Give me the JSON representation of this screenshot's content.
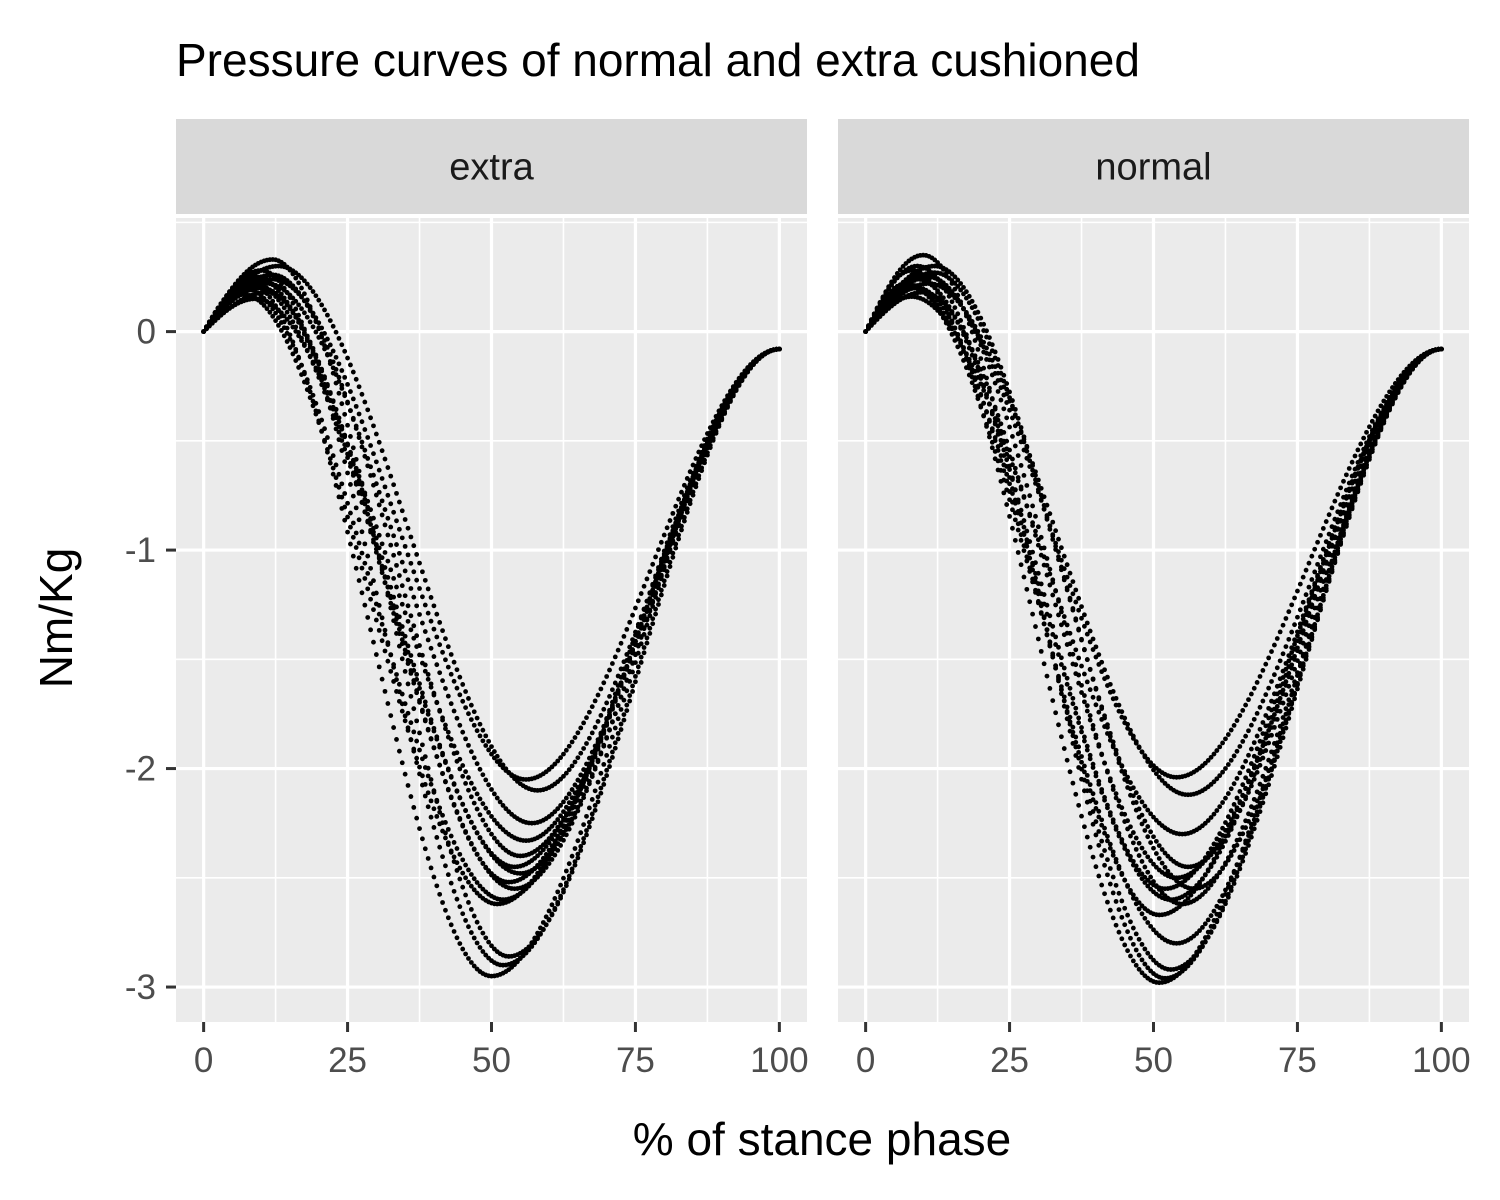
{
  "chart_data": {
    "type": "scatter",
    "title": "Pressure curves of normal and extra cushioned",
    "xlabel": "% of stance phase",
    "ylabel": "Nm/Kg",
    "xlim": [
      -4.8,
      104.8
    ],
    "ylim": [
      -3.16,
      0.52
    ],
    "x_ticks": [
      0,
      25,
      50,
      75,
      100
    ],
    "x_tick_labels": [
      "0",
      "25",
      "50",
      "75",
      "100"
    ],
    "y_ticks": [
      0,
      -1,
      -2,
      -3
    ],
    "y_tick_labels": [
      "0",
      "-1",
      "-2",
      "-3"
    ],
    "grid": true,
    "legend": "none",
    "point_color": "#000000",
    "panel_background": "#ebebeb",
    "strip_background": "#d9d9d9",
    "panels": [
      {
        "label": "extra",
        "curve_params": [
          {
            "peak_x": 8,
            "peak_y": 0.22,
            "min_x": 50,
            "min_y": -2.95
          },
          {
            "peak_x": 10,
            "peak_y": 0.28,
            "min_x": 52,
            "min_y": -2.9
          },
          {
            "peak_x": 12,
            "peak_y": 0.33,
            "min_x": 53,
            "min_y": -2.86
          },
          {
            "peak_x": 7,
            "peak_y": 0.2,
            "min_x": 52,
            "min_y": -2.6
          },
          {
            "peak_x": 9,
            "peak_y": 0.25,
            "min_x": 54,
            "min_y": -2.55
          },
          {
            "peak_x": 11,
            "peak_y": 0.18,
            "min_x": 53,
            "min_y": -2.52
          },
          {
            "peak_x": 8,
            "peak_y": 0.23,
            "min_x": 55,
            "min_y": -2.48
          },
          {
            "peak_x": 10,
            "peak_y": 0.2,
            "min_x": 54,
            "min_y": -2.45
          },
          {
            "peak_x": 12,
            "peak_y": 0.26,
            "min_x": 55,
            "min_y": -2.4
          },
          {
            "peak_x": 9,
            "peak_y": 0.15,
            "min_x": 56,
            "min_y": -2.33
          },
          {
            "peak_x": 11,
            "peak_y": 0.22,
            "min_x": 57,
            "min_y": -2.25
          },
          {
            "peak_x": 13,
            "peak_y": 0.3,
            "min_x": 58,
            "min_y": -2.1
          },
          {
            "peak_x": 12,
            "peak_y": 0.24,
            "min_x": 56,
            "min_y": -2.05
          },
          {
            "peak_x": 7,
            "peak_y": 0.17,
            "min_x": 51,
            "min_y": -2.62
          }
        ]
      },
      {
        "label": "normal",
        "curve_params": [
          {
            "peak_x": 8,
            "peak_y": 0.28,
            "min_x": 51,
            "min_y": -2.98
          },
          {
            "peak_x": 10,
            "peak_y": 0.35,
            "min_x": 52,
            "min_y": -2.96
          },
          {
            "peak_x": 9,
            "peak_y": 0.3,
            "min_x": 53,
            "min_y": -2.92
          },
          {
            "peak_x": 7,
            "peak_y": 0.22,
            "min_x": 54,
            "min_y": -2.8
          },
          {
            "peak_x": 11,
            "peak_y": 0.25,
            "min_x": 55,
            "min_y": -2.62
          },
          {
            "peak_x": 8,
            "peak_y": 0.2,
            "min_x": 53,
            "min_y": -2.6
          },
          {
            "peak_x": 9,
            "peak_y": 0.24,
            "min_x": 52,
            "min_y": -2.55
          },
          {
            "peak_x": 10,
            "peak_y": 0.18,
            "min_x": 54,
            "min_y": -2.5
          },
          {
            "peak_x": 12,
            "peak_y": 0.27,
            "min_x": 56,
            "min_y": -2.45
          },
          {
            "peak_x": 8,
            "peak_y": 0.16,
            "min_x": 55,
            "min_y": -2.3
          },
          {
            "peak_x": 11,
            "peak_y": 0.22,
            "min_x": 56,
            "min_y": -2.12
          },
          {
            "peak_x": 10,
            "peak_y": 0.26,
            "min_x": 54,
            "min_y": -2.04
          },
          {
            "peak_x": 9,
            "peak_y": 0.2,
            "min_x": 51,
            "min_y": -2.67
          },
          {
            "peak_x": 12,
            "peak_y": 0.3,
            "min_x": 57,
            "min_y": -2.55
          }
        ]
      }
    ]
  }
}
